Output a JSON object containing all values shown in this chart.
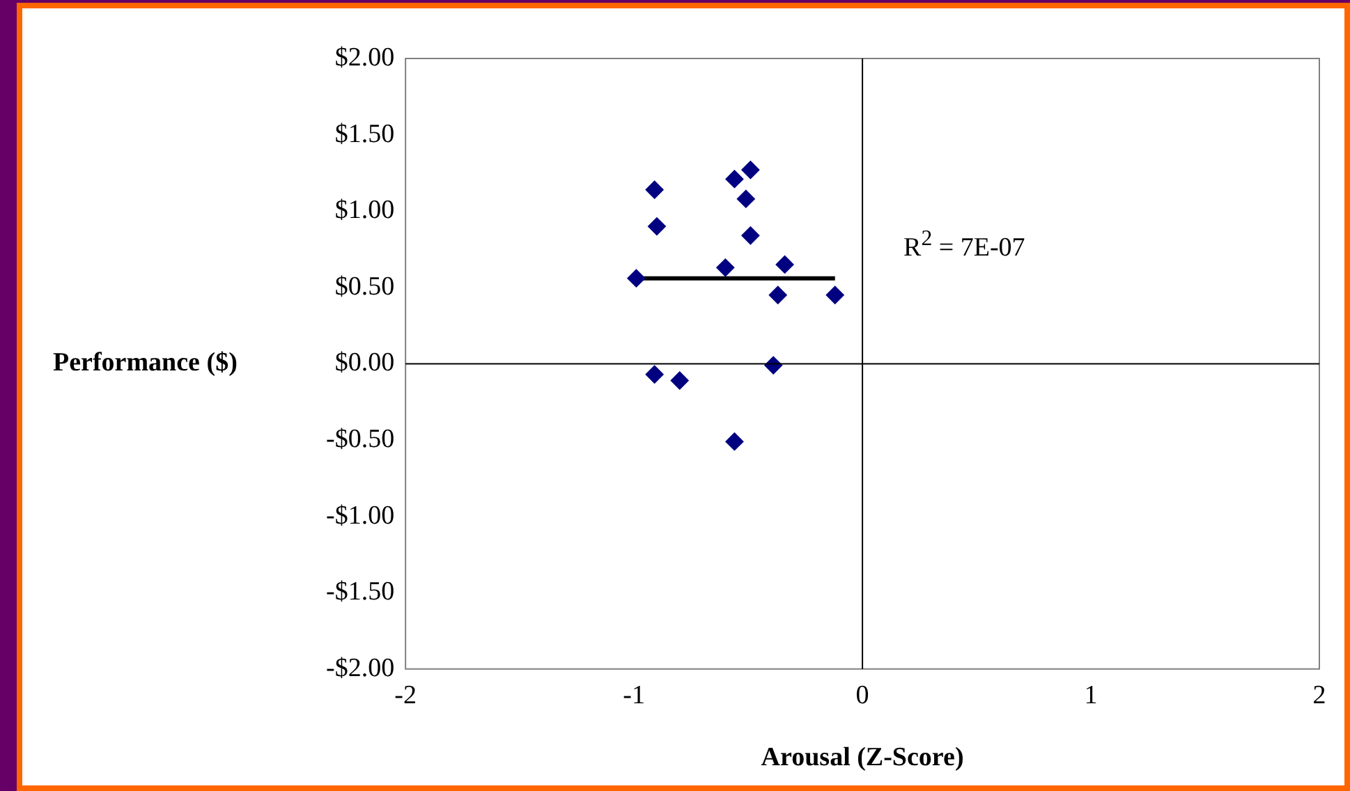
{
  "chart_data": {
    "type": "scatter",
    "xlabel": "Arousal (Z-Score)",
    "ylabel": "Performance ($)",
    "xlim": [
      -2,
      2
    ],
    "xticks": [
      -2,
      -1,
      0,
      1,
      2
    ],
    "ylim": [
      -2,
      2
    ],
    "yticks": [
      {
        "value": -2,
        "label": "-$2.00"
      },
      {
        "value": -1.5,
        "label": "-$1.50"
      },
      {
        "value": -1,
        "label": "-$1.00"
      },
      {
        "value": -0.5,
        "label": "-$0.50"
      },
      {
        "value": 0,
        "label": "$0.00"
      },
      {
        "value": 0.5,
        "label": "$0.50"
      },
      {
        "value": 1,
        "label": "$1.00"
      },
      {
        "value": 1.5,
        "label": "$1.50"
      },
      {
        "value": 2,
        "label": "$2.00"
      }
    ],
    "grid": false,
    "legend": false,
    "marker": "diamond",
    "series": [
      {
        "color": "#000080",
        "x": [
          -0.99,
          -0.91,
          -0.9,
          -0.91,
          -0.8,
          -0.6,
          -0.56,
          -0.49,
          -0.51,
          -0.49,
          -0.56,
          -0.39,
          -0.34,
          -0.37,
          -0.12
        ],
        "values": [
          0.56,
          1.14,
          0.9,
          -0.07,
          -0.11,
          0.63,
          1.21,
          1.27,
          1.08,
          0.84,
          -0.51,
          -0.01,
          0.65,
          0.45,
          0.45
        ]
      },
      {
        "type": "line",
        "marker": "none",
        "color": "#000000",
        "x": [
          -0.99,
          -0.12
        ],
        "values": [
          0.56,
          0.56
        ]
      }
    ],
    "annotations": [
      "R$^{2}$ = 7E-07"
    ]
  }
}
